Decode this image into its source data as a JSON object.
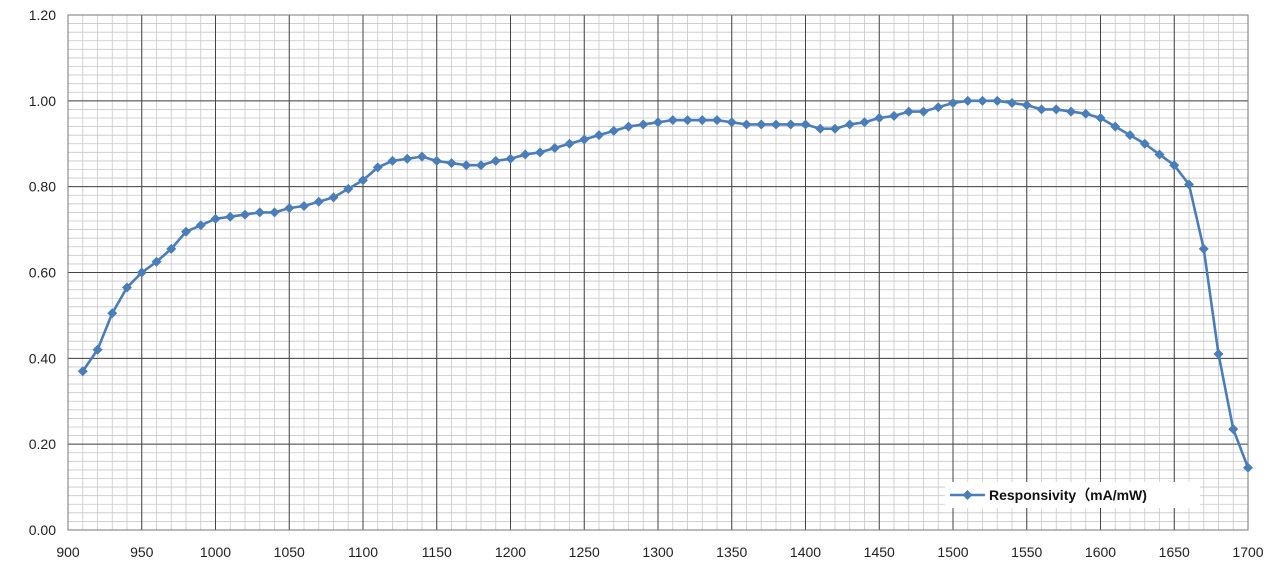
{
  "chart_data": {
    "type": "line",
    "xlim": [
      900,
      1700
    ],
    "ylim": [
      0,
      1.2
    ],
    "x_ticks": [
      900,
      950,
      1000,
      1050,
      1100,
      1150,
      1200,
      1250,
      1300,
      1350,
      1400,
      1450,
      1500,
      1550,
      1600,
      1650,
      1700
    ],
    "y_ticks": [
      "0.00",
      "0.20",
      "0.40",
      "0.60",
      "0.80",
      "1.00",
      "1.20"
    ],
    "grid": true,
    "legend_position": "bottom-right",
    "series": [
      {
        "name": "Responsivity（mA/mW)",
        "color": "#4a7ebb",
        "marker": "diamond",
        "x": [
          910,
          920,
          930,
          940,
          950,
          960,
          970,
          980,
          990,
          1000,
          1010,
          1020,
          1030,
          1040,
          1050,
          1060,
          1070,
          1080,
          1090,
          1100,
          1110,
          1120,
          1130,
          1140,
          1150,
          1160,
          1170,
          1180,
          1190,
          1200,
          1210,
          1220,
          1230,
          1240,
          1250,
          1260,
          1270,
          1280,
          1290,
          1300,
          1310,
          1320,
          1330,
          1340,
          1350,
          1360,
          1370,
          1380,
          1390,
          1400,
          1410,
          1420,
          1430,
          1440,
          1450,
          1460,
          1470,
          1480,
          1490,
          1500,
          1510,
          1520,
          1530,
          1540,
          1550,
          1560,
          1570,
          1580,
          1590,
          1600,
          1610,
          1620,
          1630,
          1640,
          1650,
          1660,
          1670,
          1680,
          1690,
          1700
        ],
        "y": [
          0.37,
          0.42,
          0.505,
          0.565,
          0.6,
          0.625,
          0.655,
          0.695,
          0.71,
          0.725,
          0.73,
          0.735,
          0.74,
          0.74,
          0.75,
          0.755,
          0.765,
          0.775,
          0.795,
          0.815,
          0.845,
          0.86,
          0.865,
          0.87,
          0.86,
          0.855,
          0.85,
          0.85,
          0.86,
          0.865,
          0.875,
          0.88,
          0.89,
          0.9,
          0.91,
          0.92,
          0.93,
          0.94,
          0.945,
          0.95,
          0.955,
          0.955,
          0.955,
          0.955,
          0.95,
          0.945,
          0.945,
          0.945,
          0.945,
          0.945,
          0.935,
          0.935,
          0.945,
          0.95,
          0.96,
          0.965,
          0.975,
          0.975,
          0.985,
          0.995,
          1.0,
          1.0,
          1.0,
          0.995,
          0.99,
          0.98,
          0.98,
          0.975,
          0.97,
          0.96,
          0.94,
          0.92,
          0.9,
          0.875,
          0.85,
          0.805,
          0.655,
          0.41,
          0.235,
          0.145
        ]
      }
    ]
  }
}
